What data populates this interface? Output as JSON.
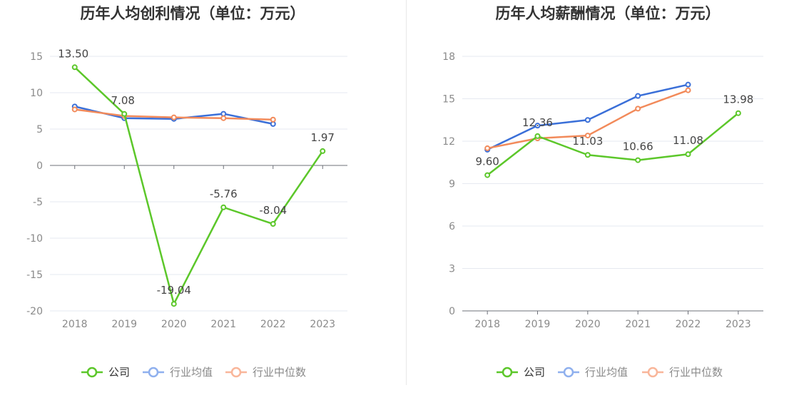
{
  "colors": {
    "company": "#5cc72a",
    "industry_avg": "#3a6fd8",
    "industry_median": "#f28a5a",
    "legend_avg": "#8fb0ee",
    "legend_median": "#f9b69a"
  },
  "chart_data": [
    {
      "type": "line",
      "title": "历年人均创利情况（单位：万元）",
      "x": [
        "2018",
        "2019",
        "2020",
        "2021",
        "2022",
        "2023"
      ],
      "ylim": [
        -20,
        15
      ],
      "yticks": [
        "15",
        "10",
        "5",
        "0",
        "-5",
        "-10",
        "-15",
        "-20"
      ],
      "grid": true,
      "legend_position": "bottom",
      "series": [
        {
          "name": "公司",
          "values": [
            13.5,
            7.08,
            -19.04,
            -5.76,
            -8.04,
            1.97
          ],
          "labels": [
            "13.50",
            "7.08",
            "-19.04",
            "-5.76",
            "-8.04",
            "1.97"
          ]
        },
        {
          "name": "行业均值",
          "values": [
            8.1,
            6.5,
            6.4,
            7.1,
            5.7,
            null
          ]
        },
        {
          "name": "行业中位数",
          "values": [
            7.7,
            6.8,
            6.6,
            6.5,
            6.3,
            null
          ]
        }
      ]
    },
    {
      "type": "line",
      "title": "历年人均薪酬情况（单位：万元）",
      "x": [
        "2018",
        "2019",
        "2020",
        "2021",
        "2022",
        "2023"
      ],
      "ylim": [
        0,
        18
      ],
      "yticks": [
        "18",
        "15",
        "12",
        "9",
        "6",
        "3",
        "0"
      ],
      "grid": true,
      "legend_position": "bottom",
      "series": [
        {
          "name": "公司",
          "values": [
            9.6,
            12.36,
            11.03,
            10.66,
            11.08,
            13.98
          ],
          "labels": [
            "9.60",
            "12.36",
            "11.03",
            "10.66",
            "11.08",
            "13.98"
          ]
        },
        {
          "name": "行业均值",
          "values": [
            11.4,
            13.1,
            13.5,
            15.2,
            16.0,
            null
          ]
        },
        {
          "name": "行业中位数",
          "values": [
            11.5,
            12.2,
            12.4,
            14.3,
            15.6,
            null
          ]
        }
      ]
    }
  ]
}
